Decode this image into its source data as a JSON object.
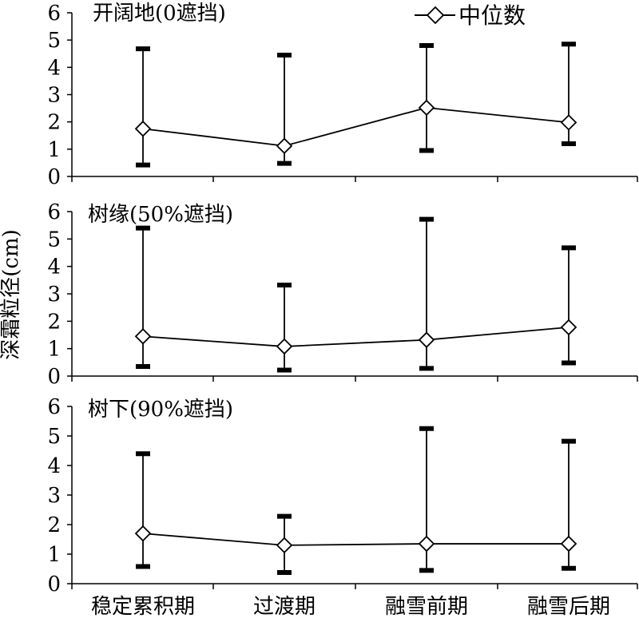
{
  "chart_data": {
    "type": "line",
    "ylabel": "深霜粒径(cm)",
    "legend": {
      "label": "中位数",
      "position": "top-right"
    },
    "categories": [
      "稳定累积期",
      "过渡期",
      "融雪前期",
      "融雪后期"
    ],
    "ylim": [
      0,
      6
    ],
    "yticks": [
      "0",
      "1",
      "2",
      "3",
      "4",
      "5",
      "6"
    ],
    "panels": [
      {
        "title": "开阔地(0遮挡)",
        "median": [
          1.75,
          1.12,
          2.52,
          1.98
        ],
        "min": [
          0.42,
          0.48,
          0.95,
          1.2
        ],
        "max": [
          4.68,
          4.45,
          4.8,
          4.85
        ]
      },
      {
        "title": "树缘(50%遮挡)",
        "median": [
          1.45,
          1.08,
          1.32,
          1.78
        ],
        "min": [
          0.35,
          0.22,
          0.28,
          0.48
        ],
        "max": [
          5.4,
          3.32,
          5.72,
          4.68
        ]
      },
      {
        "title": "树下(90%遮挡)",
        "median": [
          1.7,
          1.3,
          1.35,
          1.35
        ],
        "min": [
          0.58,
          0.38,
          0.45,
          0.52
        ],
        "max": [
          4.4,
          2.28,
          5.25,
          4.82
        ]
      }
    ]
  }
}
